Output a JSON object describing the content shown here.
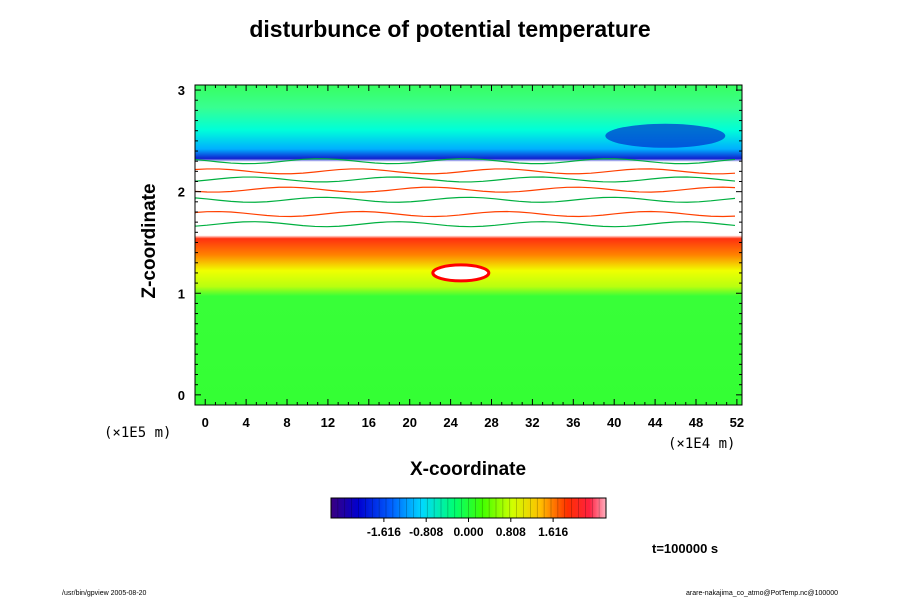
{
  "chart_data": {
    "type": "heatmap",
    "title": "disturbunce of potential temperature",
    "xlabel": "X-coordinate",
    "ylabel": "Z-coordinate",
    "x_unit": "(×1E5 m)",
    "x_unit_right": "(×1E4 m)",
    "x_ticks": [
      "0",
      "4",
      "8",
      "12",
      "16",
      "20",
      "24",
      "28",
      "32",
      "36",
      "40",
      "44",
      "48",
      "52"
    ],
    "y_ticks": [
      "0",
      "1",
      "2",
      "3"
    ],
    "xlim": [
      -1,
      52.5
    ],
    "ylim": [
      -0.1,
      3.05
    ],
    "colorbar": {
      "ticks": [
        "-1.616",
        "-0.808",
        "0.000",
        "0.808",
        "1.616"
      ],
      "range": [
        -2.626,
        2.626
      ]
    },
    "annotation": "t=100000 s",
    "field_regions": [
      {
        "z_range": [
          -0.1,
          1.0
        ],
        "value": 0.1
      },
      {
        "z_range": [
          1.0,
          1.3
        ],
        "value": 0.45
      },
      {
        "z_range": [
          1.3,
          1.45
        ],
        "value": 1.2
      },
      {
        "z_range": [
          1.45,
          1.6
        ],
        "value": 1.9
      },
      {
        "z_range": [
          1.6,
          2.5
        ],
        "value": null
      },
      {
        "z_range": [
          2.4,
          2.52
        ],
        "value": -1.7
      },
      {
        "z_range": [
          2.52,
          2.75
        ],
        "value": -0.5
      },
      {
        "z_range": [
          2.75,
          3.05
        ],
        "value": 0.1
      }
    ]
  },
  "footer": {
    "left": "/usr/bin/gpview 2005-08-20",
    "right": "arare-nakajima_co_atmo@PotTemp.nc@100000"
  }
}
